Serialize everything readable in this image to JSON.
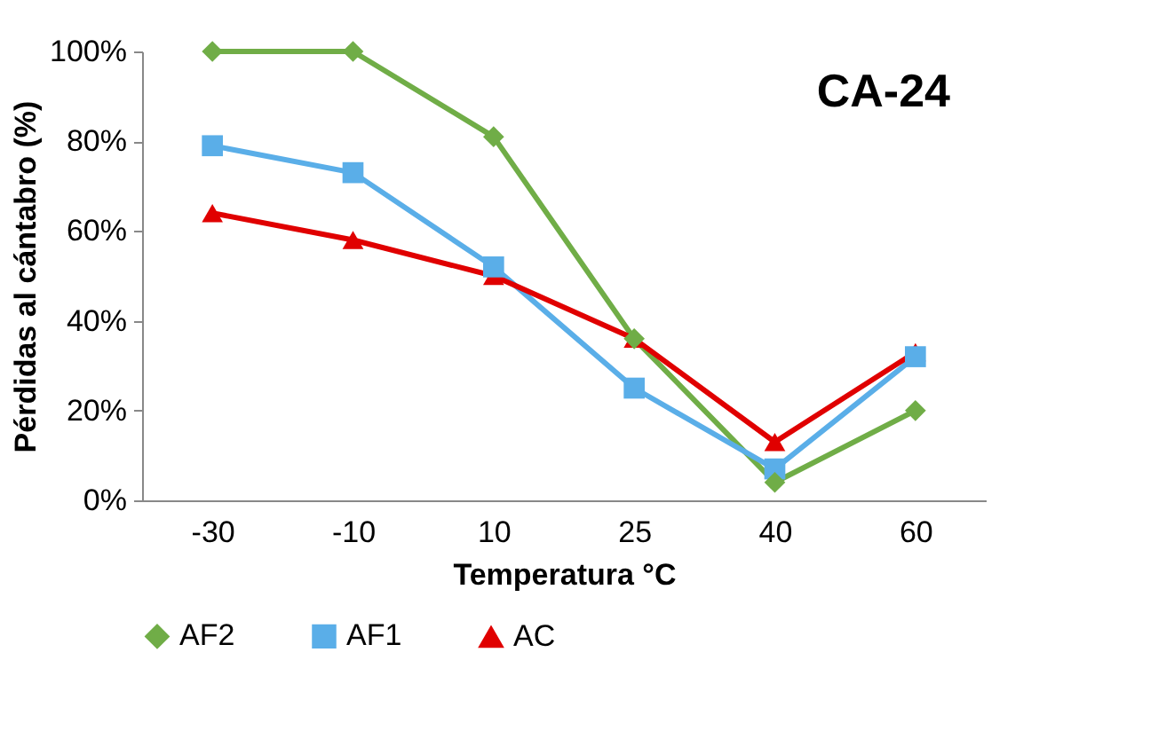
{
  "chart_data": {
    "type": "line",
    "xlabel": "Temperatura °C",
    "ylabel": "Pérdidas al cántabro (%)",
    "annotations": [
      "CA-24"
    ],
    "categories": [
      "-30",
      "-10",
      "10",
      "25",
      "40",
      "60"
    ],
    "series": [
      {
        "name": "AF2",
        "color": "#70ad47",
        "marker": "diamond",
        "values": [
          100,
          100,
          81,
          36,
          4,
          20
        ]
      },
      {
        "name": "AF1",
        "color": "#5aaee8",
        "marker": "square",
        "values": [
          79,
          73,
          52,
          25,
          7,
          32
        ]
      },
      {
        "name": "AC",
        "color": "#e00000",
        "marker": "triangle",
        "values": [
          64,
          58,
          50,
          36,
          13,
          33
        ]
      }
    ],
    "ylim": [
      0,
      100
    ],
    "yticks": [
      {
        "value": 0,
        "label": "0%"
      },
      {
        "value": 20,
        "label": "20%"
      },
      {
        "value": 40,
        "label": "40%"
      },
      {
        "value": 60,
        "label": "60%"
      },
      {
        "value": 80,
        "label": "80%"
      },
      {
        "value": 100,
        "label": "100%"
      }
    ],
    "grid": false,
    "legend": "bottom",
    "line_style": "solid"
  }
}
